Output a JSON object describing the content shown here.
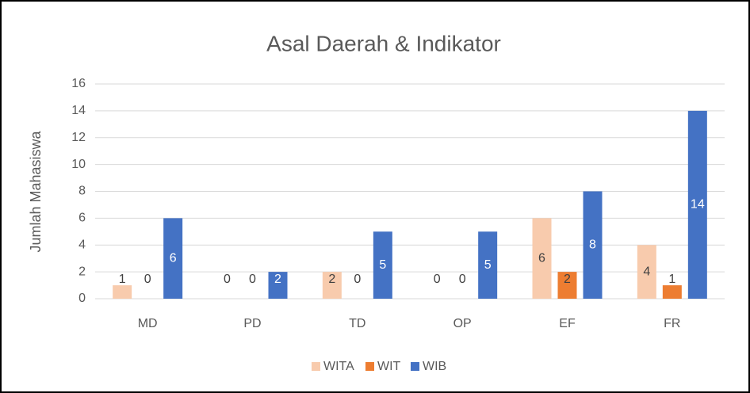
{
  "chart_data": {
    "type": "bar",
    "title": "Asal Daerah & Indikator",
    "y_label": "Jumlah Mahasiswa",
    "categories": [
      "MD",
      "PD",
      "TD",
      "OP",
      "EF",
      "FR"
    ],
    "series": [
      {
        "name": "WITA",
        "color": "#f8cbad",
        "values": [
          1,
          0,
          2,
          0,
          6,
          4
        ]
      },
      {
        "name": "WIT",
        "color": "#ed7d31",
        "values": [
          0,
          0,
          0,
          0,
          2,
          1
        ]
      },
      {
        "name": "WIB",
        "color": "#4472c4",
        "values": [
          6,
          2,
          5,
          5,
          8,
          14
        ]
      }
    ],
    "ylim": [
      0,
      16
    ],
    "yticks": [
      0,
      2,
      4,
      6,
      8,
      10,
      12,
      14,
      16
    ],
    "grid": true,
    "legend": "bottom"
  }
}
